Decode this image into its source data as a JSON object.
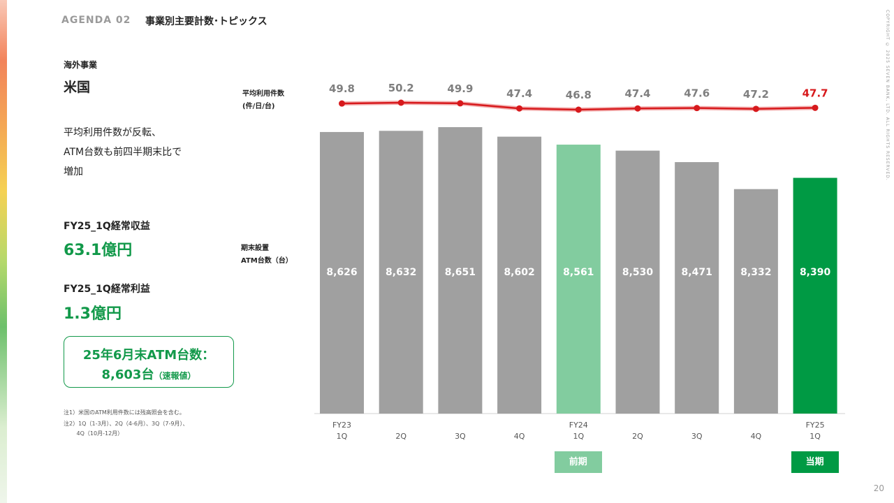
{
  "header": {
    "agenda": "AGENDA 02",
    "title": "事業別主要計数･トピックス",
    "copyright": "COPYRIGHT © 2025 SEVEN BANK, LTD. ALL RIGHTS RESERVED.",
    "page_number": "20"
  },
  "left": {
    "segment": "海外事業",
    "region": "米国",
    "summary": [
      "平均利用件数が反転、",
      "ATM台数も前四半期末比で",
      "増加"
    ],
    "revenue_label": "FY25_1Q経常収益",
    "revenue_value": "63.1億円",
    "profit_label": "FY25_1Q経常利益",
    "profit_value": "1.3億円",
    "callout_line1": "25年6月末ATM台数：",
    "callout_line2_main": "8,603台",
    "callout_line2_small": "（速報値）",
    "notes": [
      "注1）米国のATM利用件数には残高照会を含む。",
      "注2）1Q（1-3月）、2Q（4-6月）、3Q（7-9月）、",
      "　　 4Q（10月-12月）"
    ]
  },
  "chart_data": {
    "type": "bar",
    "categories": [
      "FY23 1Q",
      "2Q",
      "3Q",
      "4Q",
      "FY24 1Q",
      "2Q",
      "3Q",
      "4Q",
      "FY25 1Q"
    ],
    "category_lines": [
      [
        "FY23",
        "1Q"
      ],
      [
        "2Q"
      ],
      [
        "3Q"
      ],
      [
        "4Q"
      ],
      [
        "FY24",
        "1Q"
      ],
      [
        "2Q"
      ],
      [
        "3Q"
      ],
      [
        "4Q"
      ],
      [
        "FY25",
        "1Q"
      ]
    ],
    "series": [
      {
        "name": "期末設置ATM台数（台）",
        "type": "bar",
        "values": [
          8626,
          8632,
          8651,
          8602,
          8561,
          8530,
          8471,
          8332,
          8390
        ],
        "value_labels": [
          "8,626",
          "8,632",
          "8,651",
          "8,602",
          "8,561",
          "8,530",
          "8,471",
          "8,332",
          "8,390"
        ]
      },
      {
        "name": "平均利用件数（件/日/台）",
        "type": "line",
        "values": [
          49.8,
          50.2,
          49.9,
          47.4,
          46.8,
          47.4,
          47.6,
          47.2,
          47.7
        ],
        "value_labels": [
          "49.8",
          "50.2",
          "49.9",
          "47.4",
          "46.8",
          "47.4",
          "47.6",
          "47.2",
          "47.7"
        ]
      }
    ],
    "line_axis_label": [
      "平均利用件数",
      "(件/日/台)"
    ],
    "bar_axis_label": [
      "期末設置",
      "ATM台数（台）"
    ],
    "period_badges": [
      {
        "label": "前期",
        "category_index": 4
      },
      {
        "label": "当期",
        "category_index": 8
      }
    ],
    "colors": {
      "bar_default": "#a0a0a0",
      "bar_previous": "#82cc9f",
      "bar_current": "#009a44",
      "line": "#d7191c",
      "line_label": "#7f7f7f",
      "line_label_current": "#d7191c"
    }
  }
}
